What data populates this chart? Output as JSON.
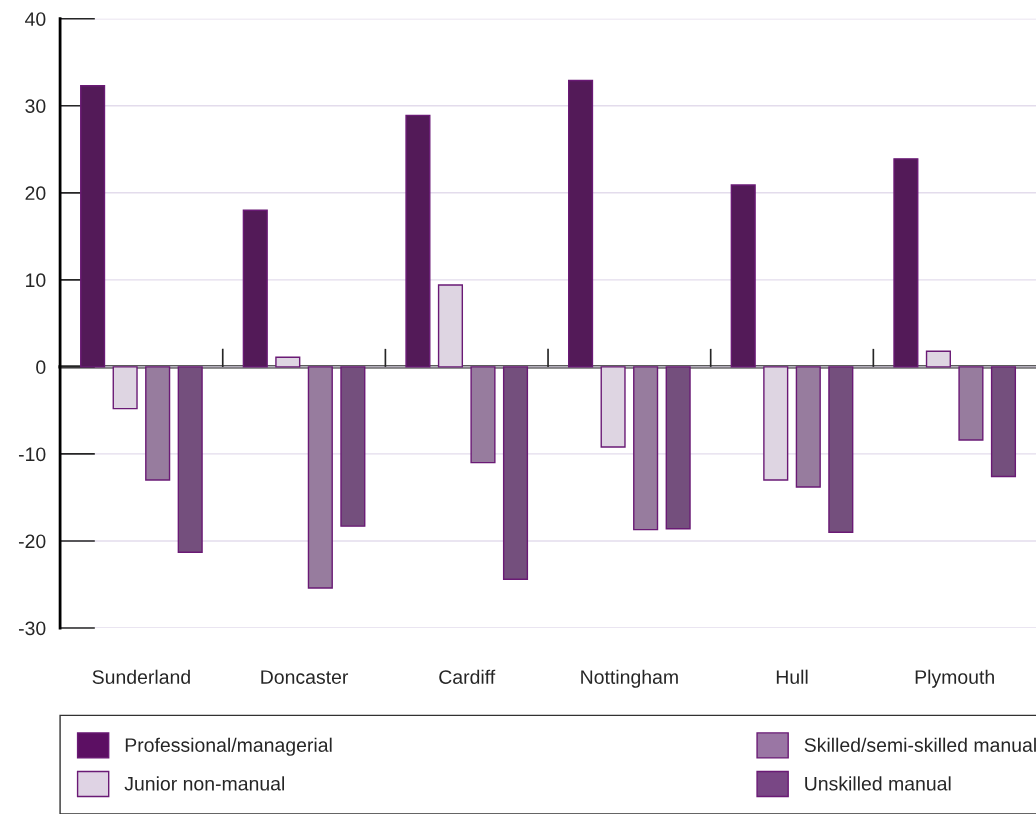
{
  "chart_data": {
    "type": "bar",
    "categories": [
      "Sunderland",
      "Doncaster",
      "Cardiff",
      "Nottingham",
      "Hull",
      "Plymouth"
    ],
    "series": [
      {
        "name": "Professional/managerial",
        "color": "#5c0f63",
        "values": [
          32.3,
          18.0,
          28.9,
          32.9,
          20.9,
          23.9
        ]
      },
      {
        "name": "Junior non-manual",
        "color": "#dfd3e4",
        "values": [
          -4.8,
          1.1,
          9.4,
          -9.2,
          -13.0,
          1.8
        ]
      },
      {
        "name": "Skilled/semi-skilled manual",
        "color": "#9a76a4",
        "values": [
          -13.0,
          -25.4,
          -11.0,
          -18.7,
          -13.8,
          -8.4
        ]
      },
      {
        "name": "Unskilled manual",
        "color": "#794785",
        "values": [
          -21.3,
          -18.3,
          -24.4,
          -18.6,
          -19.0,
          -12.6
        ]
      }
    ],
    "ylim": [
      -30,
      40
    ],
    "yticks": [
      -30,
      -20,
      -10,
      0,
      10,
      20,
      30,
      40
    ],
    "grid": "y",
    "legend": "bottom"
  }
}
